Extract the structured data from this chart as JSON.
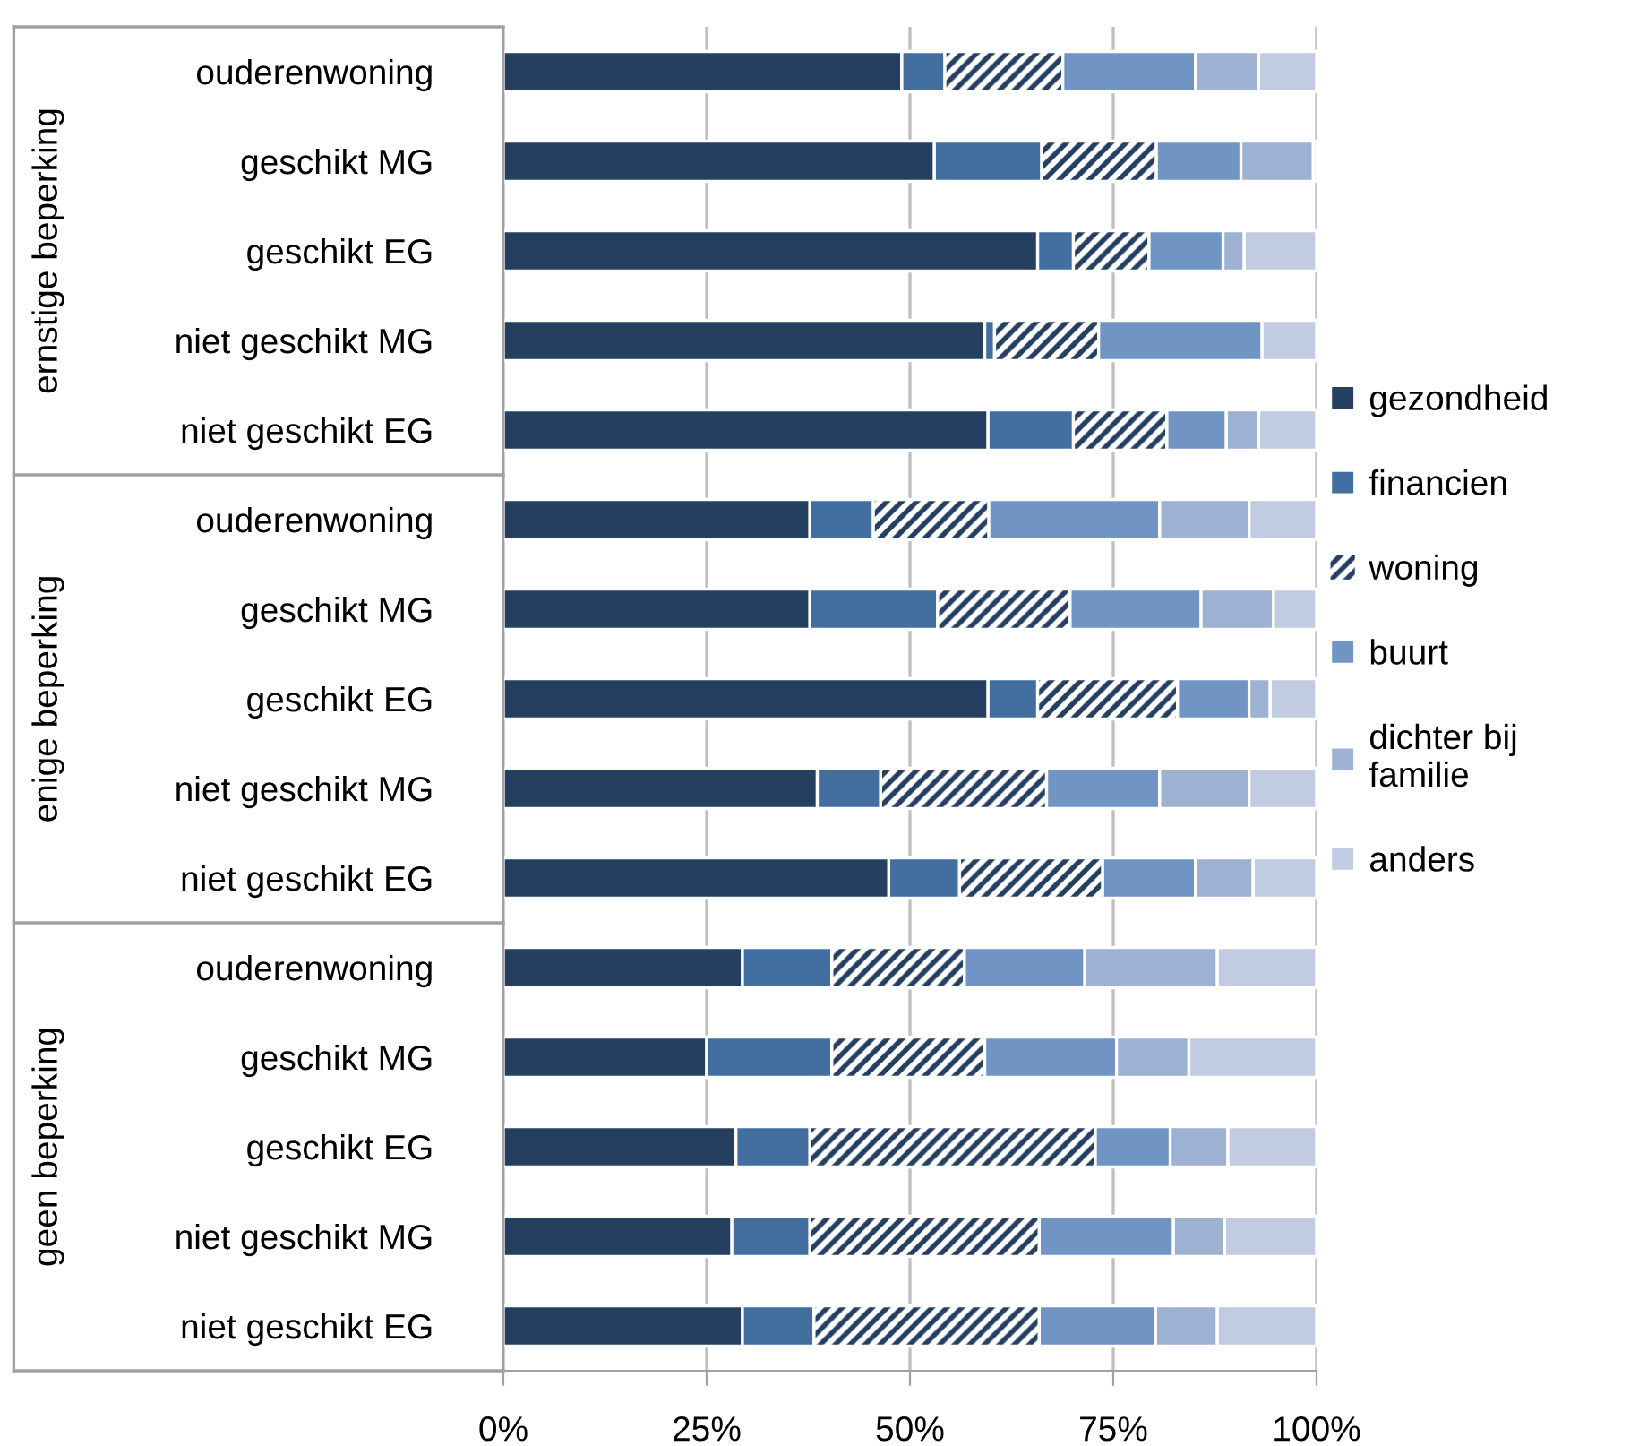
{
  "chart_data": {
    "type": "bar",
    "orientation": "horizontal",
    "stacked": true,
    "categories": [
      "ouderenwoning",
      "geschikt MG",
      "geschikt EG",
      "niet geschikt MG",
      "niet geschikt EG",
      "ouderenwoning",
      "geschikt MG",
      "geschikt EG",
      "niet geschikt MG",
      "niet geschikt EG",
      "ouderenwoning",
      "geschikt MG",
      "geschikt EG",
      "niet geschikt MG",
      "niet geschikt EG"
    ],
    "annotations": [
      "ernstige beperking",
      "enige beperking",
      "geen beperking"
    ],
    "series": [
      {
        "name": "gezondheid",
        "color": "#243f60",
        "values": [
          49.0,
          53.0,
          65.7,
          59.2,
          59.6,
          37.7,
          37.7,
          59.6,
          38.6,
          47.4,
          29.4,
          25.0,
          28.6,
          28.1,
          29.4
        ]
      },
      {
        "name": "financien",
        "color": "#426fa0",
        "values": [
          5.3,
          13.2,
          4.4,
          1.2,
          10.5,
          7.8,
          15.7,
          6.1,
          7.8,
          8.7,
          11.0,
          15.4,
          9.1,
          9.6,
          8.8
        ]
      },
      {
        "name": "woning",
        "color": "#243f60",
        "values": [
          14.5,
          14.1,
          9.3,
          12.8,
          11.5,
          14.2,
          16.3,
          17.2,
          20.4,
          17.6,
          16.3,
          18.8,
          35.1,
          28.2,
          27.7
        ]
      },
      {
        "name": "buurt",
        "color": "#7094c4",
        "values": [
          16.3,
          10.4,
          9.1,
          20.1,
          7.3,
          21.0,
          16.1,
          8.8,
          13.9,
          11.4,
          14.8,
          16.2,
          9.2,
          16.5,
          14.3
        ]
      },
      {
        "name": "dichter bij\nfamilie",
        "color": "#9db1d3",
        "values": [
          7.8,
          8.9,
          2.6,
          null,
          4.0,
          11.0,
          8.9,
          2.6,
          11.0,
          7.1,
          16.3,
          8.9,
          7.1,
          6.3,
          7.6
        ]
      },
      {
        "name": "anders",
        "color": "#c1cce2",
        "values": [
          7.1,
          0.4,
          8.9,
          6.7,
          7.1,
          8.3,
          5.3,
          5.7,
          8.3,
          7.8,
          12.2,
          15.7,
          10.9,
          11.3,
          12.2
        ]
      }
    ],
    "xlim": [
      0,
      100
    ],
    "xticks": [
      {
        "value": 0,
        "label": "0%"
      },
      {
        "value": 25,
        "label": "25%"
      },
      {
        "value": 50,
        "label": "50%"
      },
      {
        "value": 75,
        "label": "75%"
      },
      {
        "value": 100,
        "label": "100%"
      }
    ],
    "grid": "x",
    "legend": "right"
  }
}
